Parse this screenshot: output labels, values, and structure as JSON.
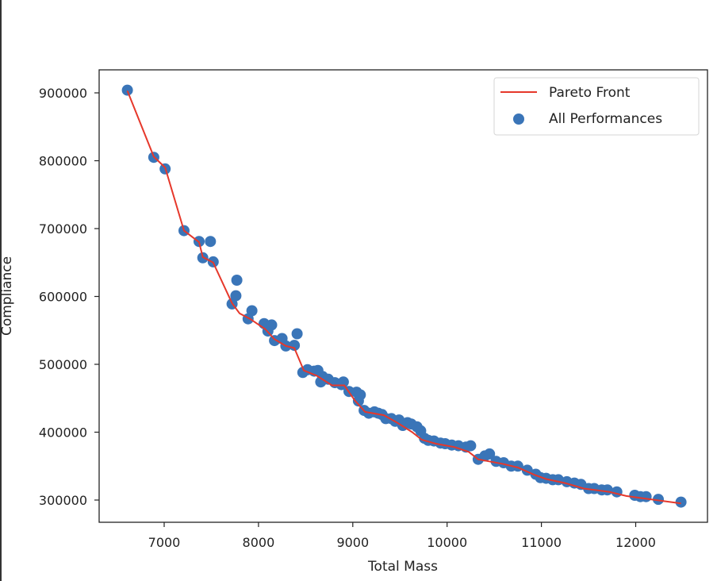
{
  "chart_data": {
    "type": "scatter",
    "title": "",
    "xlabel": "Total Mass",
    "ylabel": "Compliance",
    "xlim": [
      6340,
      12780
    ],
    "ylim": [
      267000,
      934000
    ],
    "xticks": [
      7000,
      8000,
      9000,
      10000,
      11000,
      12000
    ],
    "xtick_labels": [
      "7000",
      "8000",
      "9000",
      "10000",
      "11000",
      "12000"
    ],
    "yticks": [
      300000,
      400000,
      500000,
      600000,
      700000,
      800000,
      900000
    ],
    "ytick_labels": [
      "300000",
      "400000",
      "500000",
      "600000",
      "700000",
      "800000",
      "900000"
    ],
    "grid": false,
    "legend": {
      "position": "upper right",
      "entries": [
        {
          "label": "Pareto Front",
          "type": "line",
          "color": "#e6382b"
        },
        {
          "label": "All Performances",
          "type": "marker",
          "color": "#3a75b8"
        }
      ]
    },
    "series": [
      {
        "name": "Pareto Front",
        "type": "line",
        "color": "#e6382b",
        "x": [
          6610,
          6890,
          7010,
          7210,
          7370,
          7410,
          7520,
          7720,
          7800,
          7910,
          8070,
          8170,
          8290,
          8380,
          8480,
          8620,
          8780,
          8910,
          9020,
          9130,
          9330,
          9470,
          9630,
          9730,
          9880,
          10080,
          10230,
          10330,
          10600,
          10750,
          10930,
          11050,
          11250,
          11450,
          11720,
          11900,
          12050,
          12480
        ],
        "y": [
          903000,
          806000,
          790000,
          697000,
          680000,
          658000,
          650000,
          590000,
          575000,
          567000,
          552000,
          537000,
          527000,
          524000,
          491000,
          483000,
          469000,
          469000,
          447000,
          430000,
          425000,
          414000,
          400000,
          389000,
          383000,
          378000,
          371000,
          360000,
          353000,
          348000,
          337000,
          331000,
          325000,
          317000,
          312000,
          306000,
          303000,
          295000
        ]
      },
      {
        "name": "All Performances",
        "type": "scatter",
        "color": "#3a75b8",
        "x": [
          6610,
          6890,
          7010,
          7210,
          7370,
          7490,
          7410,
          7520,
          7720,
          7770,
          7760,
          7890,
          7930,
          8060,
          8100,
          8140,
          8170,
          8250,
          8290,
          8380,
          8410,
          8470,
          8520,
          8590,
          8630,
          8680,
          8660,
          8740,
          8810,
          8880,
          8900,
          8960,
          9040,
          9080,
          9060,
          9120,
          9170,
          9230,
          9270,
          9310,
          9350,
          9410,
          9450,
          9490,
          9530,
          9580,
          9620,
          9680,
          9720,
          9760,
          9800,
          9860,
          9930,
          9980,
          10050,
          10120,
          10200,
          10250,
          10330,
          10400,
          10450,
          10520,
          10600,
          10680,
          10750,
          10850,
          10940,
          10990,
          11050,
          11120,
          11180,
          11270,
          11350,
          11420,
          11500,
          11560,
          11640,
          11700,
          11800,
          11990,
          12050,
          12110,
          12240,
          12480
        ],
        "y": [
          904000,
          805000,
          788000,
          697000,
          681000,
          681000,
          657000,
          651000,
          589000,
          624000,
          601000,
          567000,
          579000,
          560000,
          549000,
          558000,
          535000,
          538000,
          527000,
          528000,
          545000,
          488000,
          492000,
          490000,
          491000,
          482000,
          474000,
          478000,
          473000,
          470000,
          474000,
          460000,
          459000,
          455000,
          446000,
          432000,
          428000,
          430000,
          428000,
          426000,
          420000,
          420000,
          416000,
          418000,
          410000,
          414000,
          412000,
          408000,
          402000,
          391000,
          388000,
          387000,
          384000,
          383000,
          381000,
          380000,
          378000,
          380000,
          360000,
          365000,
          368000,
          357000,
          355000,
          350000,
          350000,
          344000,
          338000,
          333000,
          332000,
          330000,
          330000,
          327000,
          325000,
          323000,
          317000,
          317000,
          315000,
          315000,
          312000,
          307000,
          305000,
          305000,
          301000,
          297000
        ]
      }
    ]
  }
}
